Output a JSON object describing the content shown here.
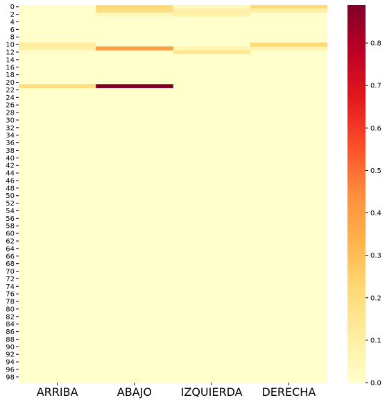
{
  "chart_data": {
    "type": "heatmap",
    "colormap": "YlOrRd",
    "columns": [
      "ARRIBA",
      "ABAJO",
      "IZQUIERDA",
      "DERECHA"
    ],
    "rows": {
      "start": 0,
      "end": 99
    },
    "y_tick_labels": [
      "0",
      "2",
      "4",
      "6",
      "8",
      "10",
      "12",
      "14",
      "16",
      "18",
      "20",
      "22",
      "24",
      "26",
      "28",
      "30",
      "32",
      "34",
      "36",
      "38",
      "40",
      "42",
      "44",
      "46",
      "48",
      "50",
      "52",
      "54",
      "56",
      "58",
      "60",
      "62",
      "64",
      "66",
      "68",
      "70",
      "72",
      "74",
      "76",
      "78",
      "80",
      "82",
      "84",
      "86",
      "88",
      "90",
      "92",
      "94",
      "96",
      "98"
    ],
    "colorbar": {
      "vmin": 0.0,
      "vmax": 0.89,
      "tick_labels": [
        "0.0",
        "0.1",
        "0.2",
        "0.3",
        "0.4",
        "0.5",
        "0.6",
        "0.7",
        "0.8"
      ]
    },
    "nonzero_cells": [
      {
        "row": 0,
        "col": "ABAJO",
        "value": 0.22
      },
      {
        "row": 1,
        "col": "ABAJO",
        "value": 0.19
      },
      {
        "row": 2,
        "col": "ABAJO",
        "value": 0.05
      },
      {
        "row": 0,
        "col": "IZQUIERDA",
        "value": 0.04
      },
      {
        "row": 1,
        "col": "IZQUIERDA",
        "value": 0.09
      },
      {
        "row": 2,
        "col": "IZQUIERDA",
        "value": 0.09
      },
      {
        "row": 0,
        "col": "DERECHA",
        "value": 0.21
      },
      {
        "row": 1,
        "col": "DERECHA",
        "value": 0.1
      },
      {
        "row": 10,
        "col": "ARRIBA",
        "value": 0.12
      },
      {
        "row": 11,
        "col": "ARRIBA",
        "value": 0.09
      },
      {
        "row": 11,
        "col": "ABAJO",
        "value": 0.4
      },
      {
        "row": 11,
        "col": "IZQUIERDA",
        "value": 0.06
      },
      {
        "row": 12,
        "col": "IZQUIERDA",
        "value": 0.15
      },
      {
        "row": 10,
        "col": "DERECHA",
        "value": 0.22
      },
      {
        "row": 11,
        "col": "DERECHA",
        "value": 0.08
      },
      {
        "row": 21,
        "col": "ARRIBA",
        "value": 0.19
      },
      {
        "row": 21,
        "col": "ABAJO",
        "value": 0.89
      }
    ],
    "grid": false,
    "legend": "colorbar-right"
  }
}
